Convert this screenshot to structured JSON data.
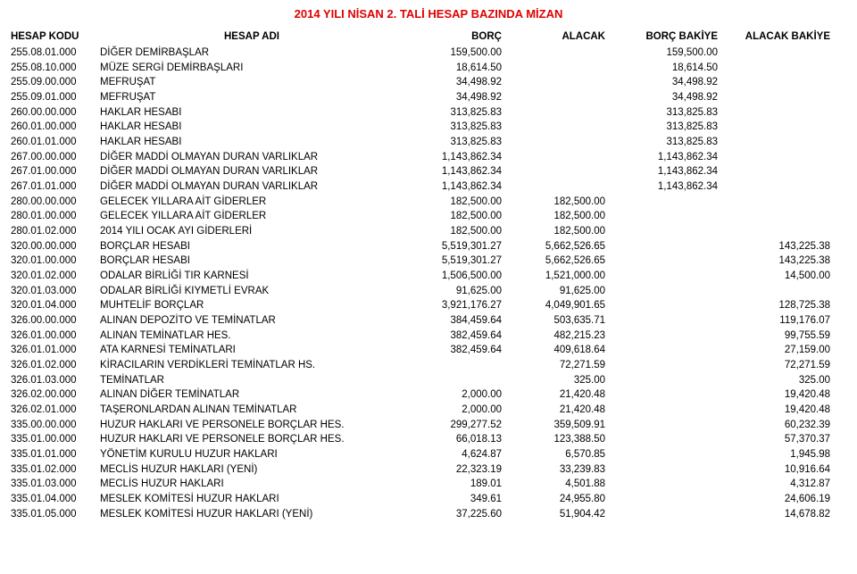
{
  "title": "2014 YILI NİSAN 2. TALİ HESAP BAZINDA MİZAN",
  "headers": {
    "code": "HESAP KODU",
    "name": "HESAP ADI",
    "debit": "BORÇ",
    "credit": "ALACAK",
    "debitBal": "BORÇ BAKİYE",
    "creditBal": "ALACAK BAKİYE"
  },
  "rows": [
    {
      "code": "255.08.01.000",
      "name": "DİĞER DEMİRBAŞLAR",
      "debit": "159,500.00",
      "credit": "",
      "debitBal": "159,500.00",
      "creditBal": ""
    },
    {
      "code": "255.08.10.000",
      "name": "MÜZE SERGİ DEMİRBAŞLARI",
      "debit": "18,614.50",
      "credit": "",
      "debitBal": "18,614.50",
      "creditBal": ""
    },
    {
      "code": "255.09.00.000",
      "name": "MEFRUŞAT",
      "debit": "34,498.92",
      "credit": "",
      "debitBal": "34,498.92",
      "creditBal": ""
    },
    {
      "code": "255.09.01.000",
      "name": "MEFRUŞAT",
      "debit": "34,498.92",
      "credit": "",
      "debitBal": "34,498.92",
      "creditBal": ""
    },
    {
      "code": "260.00.00.000",
      "name": "HAKLAR HESABI",
      "debit": "313,825.83",
      "credit": "",
      "debitBal": "313,825.83",
      "creditBal": ""
    },
    {
      "code": "260.01.00.000",
      "name": "HAKLAR HESABI",
      "debit": "313,825.83",
      "credit": "",
      "debitBal": "313,825.83",
      "creditBal": ""
    },
    {
      "code": "260.01.01.000",
      "name": "HAKLAR HESABI",
      "debit": "313,825.83",
      "credit": "",
      "debitBal": "313,825.83",
      "creditBal": ""
    },
    {
      "code": "267.00.00.000",
      "name": "DİĞER MADDİ OLMAYAN DURAN VARLIKLAR",
      "debit": "1,143,862.34",
      "credit": "",
      "debitBal": "1,143,862.34",
      "creditBal": ""
    },
    {
      "code": "267.01.00.000",
      "name": "DİĞER MADDİ OLMAYAN DURAN VARLIKLAR",
      "debit": "1,143,862.34",
      "credit": "",
      "debitBal": "1,143,862.34",
      "creditBal": ""
    },
    {
      "code": "267.01.01.000",
      "name": "DİĞER MADDİ OLMAYAN DURAN VARLIKLAR",
      "debit": "1,143,862.34",
      "credit": "",
      "debitBal": "1,143,862.34",
      "creditBal": ""
    },
    {
      "code": "280.00.00.000",
      "name": "GELECEK YILLARA AİT GİDERLER",
      "debit": "182,500.00",
      "credit": "182,500.00",
      "debitBal": "",
      "creditBal": ""
    },
    {
      "code": "280.01.00.000",
      "name": "GELECEK YILLARA AİT GİDERLER",
      "debit": "182,500.00",
      "credit": "182,500.00",
      "debitBal": "",
      "creditBal": ""
    },
    {
      "code": "280.01.02.000",
      "name": "2014 YILI OCAK AYI GİDERLERİ",
      "debit": "182,500.00",
      "credit": "182,500.00",
      "debitBal": "",
      "creditBal": ""
    },
    {
      "code": "320.00.00.000",
      "name": "BORÇLAR HESABI",
      "debit": "5,519,301.27",
      "credit": "5,662,526.65",
      "debitBal": "",
      "creditBal": "143,225.38"
    },
    {
      "code": "320.01.00.000",
      "name": "BORÇLAR HESABI",
      "debit": "5,519,301.27",
      "credit": "5,662,526.65",
      "debitBal": "",
      "creditBal": "143,225.38"
    },
    {
      "code": "320.01.02.000",
      "name": "ODALAR BİRLİĞİ TIR KARNESİ",
      "debit": "1,506,500.00",
      "credit": "1,521,000.00",
      "debitBal": "",
      "creditBal": "14,500.00"
    },
    {
      "code": "320.01.03.000",
      "name": "ODALAR BİRLİĞİ KIYMETLİ EVRAK",
      "debit": "91,625.00",
      "credit": "91,625.00",
      "debitBal": "",
      "creditBal": ""
    },
    {
      "code": "320.01.04.000",
      "name": "MUHTELİF BORÇLAR",
      "debit": "3,921,176.27",
      "credit": "4,049,901.65",
      "debitBal": "",
      "creditBal": "128,725.38"
    },
    {
      "code": "326.00.00.000",
      "name": "ALINAN DEPOZİTO VE TEMİNATLAR",
      "debit": "384,459.64",
      "credit": "503,635.71",
      "debitBal": "",
      "creditBal": "119,176.07"
    },
    {
      "code": "326.01.00.000",
      "name": "ALINAN TEMİNATLAR HES.",
      "debit": "382,459.64",
      "credit": "482,215.23",
      "debitBal": "",
      "creditBal": "99,755.59"
    },
    {
      "code": "326.01.01.000",
      "name": "ATA KARNESİ TEMİNATLARI",
      "debit": "382,459.64",
      "credit": "409,618.64",
      "debitBal": "",
      "creditBal": "27,159.00"
    },
    {
      "code": "326.01.02.000",
      "name": "KİRACILARIN VERDİKLERİ TEMİNATLAR HS.",
      "debit": "",
      "credit": "72,271.59",
      "debitBal": "",
      "creditBal": "72,271.59"
    },
    {
      "code": "326.01.03.000",
      "name": "TEMİNATLAR",
      "debit": "",
      "credit": "325.00",
      "debitBal": "",
      "creditBal": "325.00"
    },
    {
      "code": "326.02.00.000",
      "name": "ALINAN DİĞER TEMİNATLAR",
      "debit": "2,000.00",
      "credit": "21,420.48",
      "debitBal": "",
      "creditBal": "19,420.48"
    },
    {
      "code": "326.02.01.000",
      "name": "TAŞERONLARDAN ALINAN TEMİNATLAR",
      "debit": "2,000.00",
      "credit": "21,420.48",
      "debitBal": "",
      "creditBal": "19,420.48"
    },
    {
      "code": "335.00.00.000",
      "name": "HUZUR HAKLARI VE PERSONELE BORÇLAR HES.",
      "debit": "299,277.52",
      "credit": "359,509.91",
      "debitBal": "",
      "creditBal": "60,232.39"
    },
    {
      "code": "335.01.00.000",
      "name": "HUZUR HAKLARI VE PERSONELE BORÇLAR HES.",
      "debit": "66,018.13",
      "credit": "123,388.50",
      "debitBal": "",
      "creditBal": "57,370.37"
    },
    {
      "code": "335.01.01.000",
      "name": "YÖNETİM KURULU HUZUR HAKLARI",
      "debit": "4,624.87",
      "credit": "6,570.85",
      "debitBal": "",
      "creditBal": "1,945.98"
    },
    {
      "code": "335.01.02.000",
      "name": "MECLİS HUZUR HAKLARI (YENİ)",
      "debit": "22,323.19",
      "credit": "33,239.83",
      "debitBal": "",
      "creditBal": "10,916.64"
    },
    {
      "code": "335.01.03.000",
      "name": "MECLİS HUZUR HAKLARI",
      "debit": "189.01",
      "credit": "4,501.88",
      "debitBal": "",
      "creditBal": "4,312.87"
    },
    {
      "code": "335.01.04.000",
      "name": "MESLEK KOMİTESİ HUZUR HAKLARI",
      "debit": "349.61",
      "credit": "24,955.80",
      "debitBal": "",
      "creditBal": "24,606.19"
    },
    {
      "code": "335.01.05.000",
      "name": "MESLEK KOMİTESİ HUZUR HAKLARI (YENİ)",
      "debit": "37,225.60",
      "credit": "51,904.42",
      "debitBal": "",
      "creditBal": "14,678.82"
    }
  ]
}
